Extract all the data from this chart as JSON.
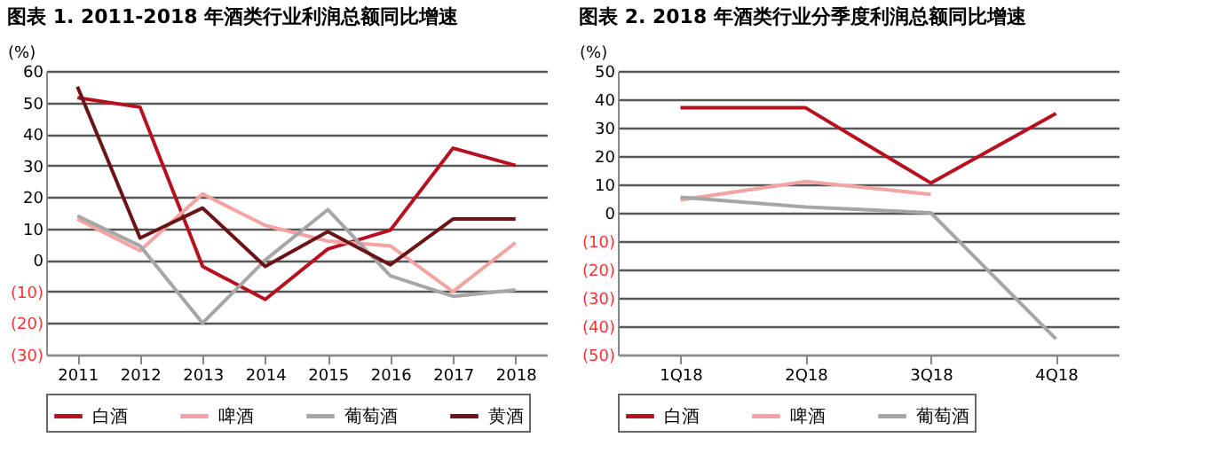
{
  "chart_data": [
    {
      "type": "line",
      "title": "图表 1. 2011-2018 年酒类行业利润总额同比增速",
      "ylabel": "(%)",
      "categories": [
        "2011",
        "2012",
        "2013",
        "2014",
        "2015",
        "2016",
        "2017",
        "2018"
      ],
      "series": [
        {
          "name": "白酒",
          "color": "#b8101f",
          "values": [
            51.5,
            48.5,
            -2,
            -12.5,
            3.5,
            9.5,
            35.5,
            30
          ]
        },
        {
          "name": "啤酒",
          "color": "#f4a3a3",
          "values": [
            13,
            3,
            21,
            11,
            6,
            4.5,
            -10,
            5.5
          ]
        },
        {
          "name": "葡萄酒",
          "color": "#a6a6a6",
          "values": [
            14,
            4.5,
            -20,
            0,
            16,
            -5,
            -11.5,
            -9.5
          ]
        },
        {
          "name": "黄酒",
          "color": "#6b1418",
          "values": [
            55,
            7,
            16.5,
            -2,
            9,
            -1.5,
            13,
            13
          ]
        }
      ],
      "ylim": [
        -30,
        60
      ],
      "yticks": [
        {
          "value": -30,
          "label": "(30)"
        },
        {
          "value": -20,
          "label": "(20)"
        },
        {
          "value": -10,
          "label": "(10)"
        },
        0,
        10,
        20,
        30,
        40,
        50,
        60
      ],
      "grid": "y",
      "legend": "bottom",
      "marker": "none",
      "line_style": "solid"
    },
    {
      "type": "line",
      "title": "图表 2. 2018 年酒类行业分季度利润总额同比增速",
      "ylabel": "(%)",
      "categories": [
        "1Q18",
        "2Q18",
        "3Q18",
        "4Q18"
      ],
      "series": [
        {
          "name": "白酒",
          "color": "#b8101f",
          "values": [
            37,
            37,
            10.5,
            35
          ]
        },
        {
          "name": "啤酒",
          "color": "#f4a3a3",
          "values": [
            4.5,
            11,
            6.5,
            null
          ]
        },
        {
          "name": "葡萄酒",
          "color": "#a6a6a6",
          "values": [
            5.5,
            2,
            0,
            -44.5
          ]
        }
      ],
      "ylim": [
        -50,
        50
      ],
      "yticks": [
        {
          "value": -50,
          "label": "(50)"
        },
        {
          "value": -40,
          "label": "(40)"
        },
        {
          "value": -30,
          "label": "(30)"
        },
        {
          "value": -20,
          "label": "(20)"
        },
        {
          "value": -10,
          "label": "(10)"
        },
        0,
        10,
        20,
        30,
        40,
        50
      ],
      "grid": "y",
      "legend": "bottom",
      "marker": "none",
      "line_style": "solid"
    }
  ]
}
